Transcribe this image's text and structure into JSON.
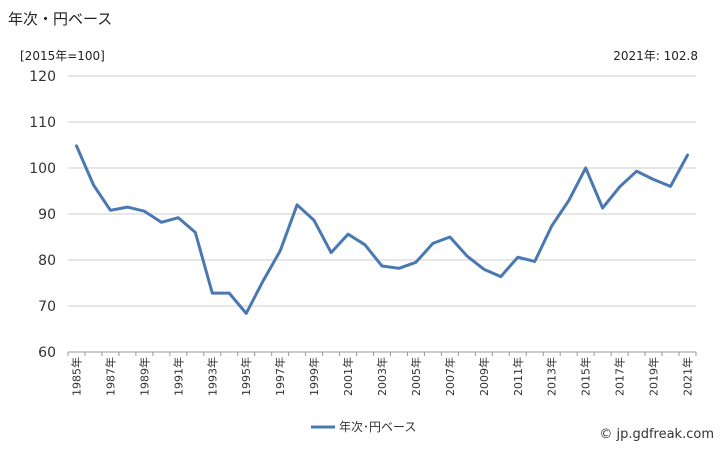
{
  "header": {
    "title": "年次・円ベース",
    "unit_label": "[2015年=100]",
    "latest_label": "2021年: 102.8"
  },
  "footer": {
    "credit": "© jp.gdfreak.com"
  },
  "chart_data": {
    "type": "line",
    "title": "年次・円ベース",
    "xlabel": "",
    "ylabel": "",
    "ylim": [
      60,
      120
    ],
    "yticks": [
      60,
      70,
      80,
      90,
      100,
      110,
      120
    ],
    "grid": true,
    "legend_position": "bottom",
    "x": [
      1985,
      1986,
      1987,
      1988,
      1989,
      1990,
      1991,
      1992,
      1993,
      1994,
      1995,
      1996,
      1997,
      1998,
      1999,
      2000,
      2001,
      2002,
      2003,
      2004,
      2005,
      2006,
      2007,
      2008,
      2009,
      2010,
      2011,
      2012,
      2013,
      2014,
      2015,
      2016,
      2017,
      2018,
      2019,
      2020,
      2021
    ],
    "xtick_labels": [
      "1985年",
      "1987年",
      "1989年",
      "1991年",
      "1993年",
      "1995年",
      "1997年",
      "1999年",
      "2001年",
      "2003年",
      "2005年",
      "2007年",
      "2009年",
      "2011年",
      "2013年",
      "2015年",
      "2017年",
      "2019年",
      "2021年"
    ],
    "series": [
      {
        "name": "年次･円ベース",
        "color": "#4a78b0",
        "values": [
          104.8,
          96.3,
          90.8,
          91.5,
          90.6,
          88.2,
          89.2,
          86.0,
          72.8,
          72.8,
          68.4,
          75.5,
          82.0,
          92.0,
          88.6,
          81.6,
          85.6,
          83.3,
          78.7,
          78.2,
          79.5,
          83.6,
          85.0,
          80.9,
          78.0,
          76.4,
          80.6,
          79.7,
          87.4,
          92.9,
          100.0,
          91.3,
          95.9,
          99.3,
          97.5,
          96.0,
          102.8
        ]
      }
    ]
  }
}
